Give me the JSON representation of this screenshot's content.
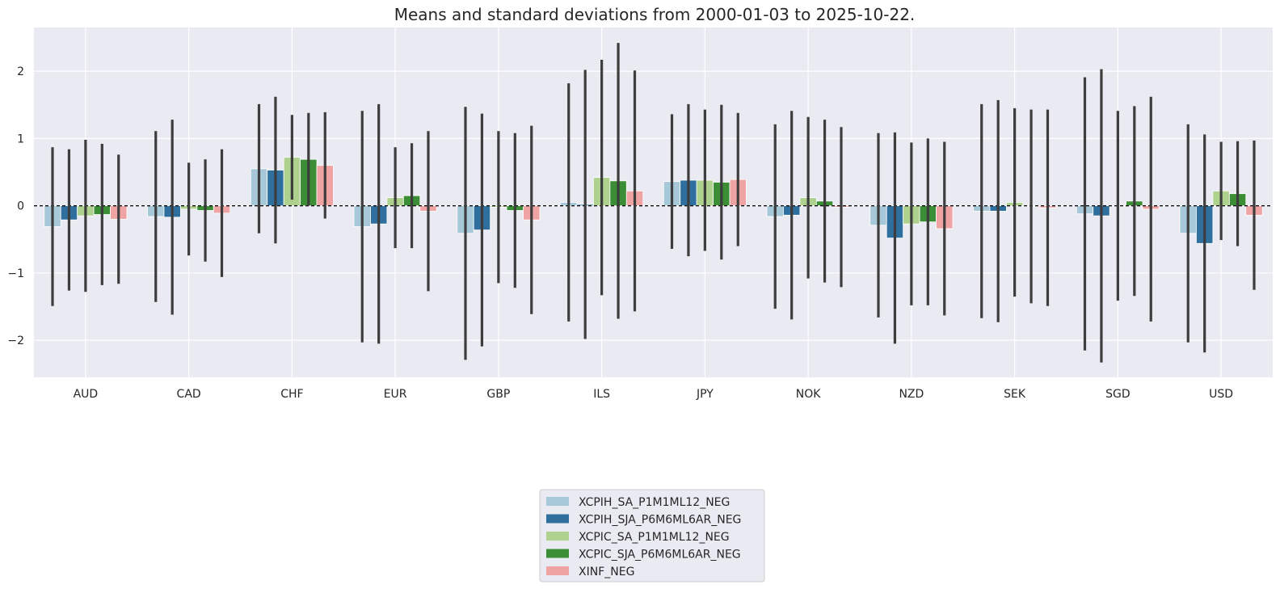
{
  "chart_data": {
    "type": "bar",
    "title": "Means and standard deviations from 2000-01-03 to 2025-10-22.",
    "xlabel": "",
    "ylabel": "",
    "ylim": [
      -2.55,
      2.65
    ],
    "yticks": [
      2,
      1,
      0,
      -1,
      -2
    ],
    "ytick_labels": [
      "2",
      "1",
      "0",
      "−1",
      "−2"
    ],
    "grid": true,
    "legend_position": "bottom-center",
    "error_bars": "± 1 standard deviation",
    "categories": [
      "AUD",
      "CAD",
      "CHF",
      "EUR",
      "GBP",
      "ILS",
      "JPY",
      "NOK",
      "NZD",
      "SEK",
      "SGD",
      "USD"
    ],
    "series": [
      {
        "name": "XCPIH_SA_P1M1ML12_NEG",
        "color": "#a6c8d8",
        "values": [
          -0.31,
          -0.16,
          0.55,
          -0.31,
          -0.41,
          0.05,
          0.36,
          -0.16,
          -0.29,
          -0.08,
          -0.12,
          -0.41
        ],
        "std": [
          1.18,
          1.27,
          0.96,
          1.72,
          1.88,
          1.77,
          1.0,
          1.37,
          1.37,
          1.59,
          2.03,
          1.62
        ]
      },
      {
        "name": "XCPIH_SJA_P6M6ML6AR_NEG",
        "color": "#2e6f9e",
        "values": [
          -0.21,
          -0.17,
          0.53,
          -0.27,
          -0.36,
          0.02,
          0.38,
          -0.14,
          -0.48,
          -0.08,
          -0.15,
          -0.56
        ],
        "std": [
          1.05,
          1.45,
          1.09,
          1.78,
          1.73,
          2.0,
          1.13,
          1.55,
          1.57,
          1.65,
          2.18,
          1.62
        ]
      },
      {
        "name": "XCPIC_SA_P1M1ML12_NEG",
        "color": "#aed18e",
        "values": [
          -0.15,
          -0.05,
          0.72,
          0.12,
          -0.02,
          0.42,
          0.38,
          0.12,
          -0.27,
          0.05,
          0.0,
          0.22
        ],
        "std": [
          1.13,
          0.69,
          0.63,
          0.75,
          1.13,
          1.75,
          1.05,
          1.2,
          1.21,
          1.4,
          1.41,
          0.73
        ]
      },
      {
        "name": "XCPIC_SJA_P6M6ML6AR_NEG",
        "color": "#3c8e36",
        "values": [
          -0.13,
          -0.07,
          0.69,
          0.15,
          -0.07,
          0.37,
          0.35,
          0.07,
          -0.24,
          -0.01,
          0.07,
          0.18
        ],
        "std": [
          1.05,
          0.76,
          0.69,
          0.78,
          1.15,
          2.05,
          1.15,
          1.21,
          1.24,
          1.44,
          1.41,
          0.78
        ]
      },
      {
        "name": "XINF_NEG",
        "color": "#f0a3a3",
        "values": [
          -0.2,
          -0.11,
          0.6,
          -0.08,
          -0.21,
          0.22,
          0.39,
          -0.02,
          -0.34,
          -0.03,
          -0.05,
          -0.14
        ],
        "std": [
          0.96,
          0.95,
          0.79,
          1.19,
          1.4,
          1.79,
          0.99,
          1.19,
          1.29,
          1.46,
          1.67,
          1.11
        ]
      }
    ]
  }
}
